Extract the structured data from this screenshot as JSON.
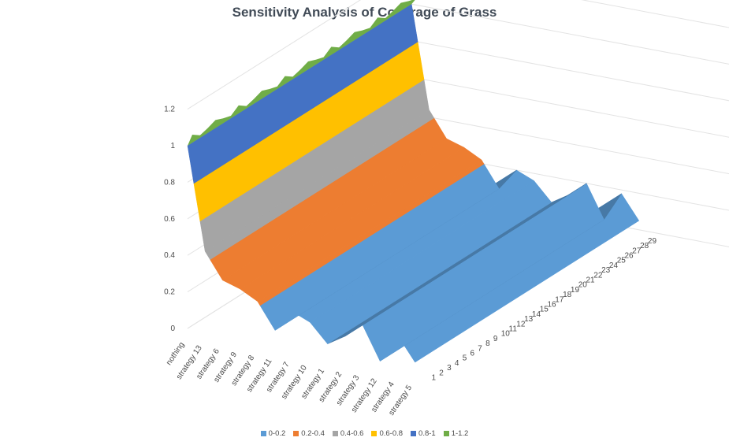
{
  "chart_data": {
    "type": "surface-3d",
    "title": "Sensitivity Analysis of Coverage of Grass",
    "categories": [
      "nothing",
      "strategy 13",
      "strategy 6",
      "strategy 9",
      "strategy 8",
      "strategy 11",
      "strategy 7",
      "strategy 10",
      "strategy 1",
      "strategy 2",
      "strategy 3",
      "strategy 12",
      "strategy 4",
      "strategy 5"
    ],
    "depth_labels": [
      "1",
      "2",
      "3",
      "4",
      "5",
      "6",
      "7",
      "8",
      "9",
      "10",
      "11",
      "12",
      "13",
      "14",
      "15",
      "16",
      "17",
      "18",
      "19",
      "20",
      "21",
      "22",
      "23",
      "24",
      "25",
      "26",
      "27",
      "28",
      "29"
    ],
    "ylim": [
      0,
      1.2
    ],
    "yticks": [
      "0",
      "0.2",
      "0.4",
      "0.6",
      "0.8",
      "1",
      "1.2"
    ],
    "profile": [
      1,
      0.44,
      0.3,
      0.27,
      0.22,
      0.08,
      0.2,
      0.16,
      0.06,
      0.12,
      0.2,
      0.02,
      0.18,
      0.05
    ],
    "legend_placement": "bottom",
    "bands": [
      {
        "name": "0-0.2",
        "color": "#5b9bd5"
      },
      {
        "name": "0.2-0.4",
        "color": "#ed7d31"
      },
      {
        "name": "0.4-0.6",
        "color": "#a5a5a5"
      },
      {
        "name": "0.6-0.8",
        "color": "#ffc000"
      },
      {
        "name": "0.8-1",
        "color": "#4472c4"
      },
      {
        "name": "1-1.2",
        "color": "#70ad47"
      }
    ]
  }
}
